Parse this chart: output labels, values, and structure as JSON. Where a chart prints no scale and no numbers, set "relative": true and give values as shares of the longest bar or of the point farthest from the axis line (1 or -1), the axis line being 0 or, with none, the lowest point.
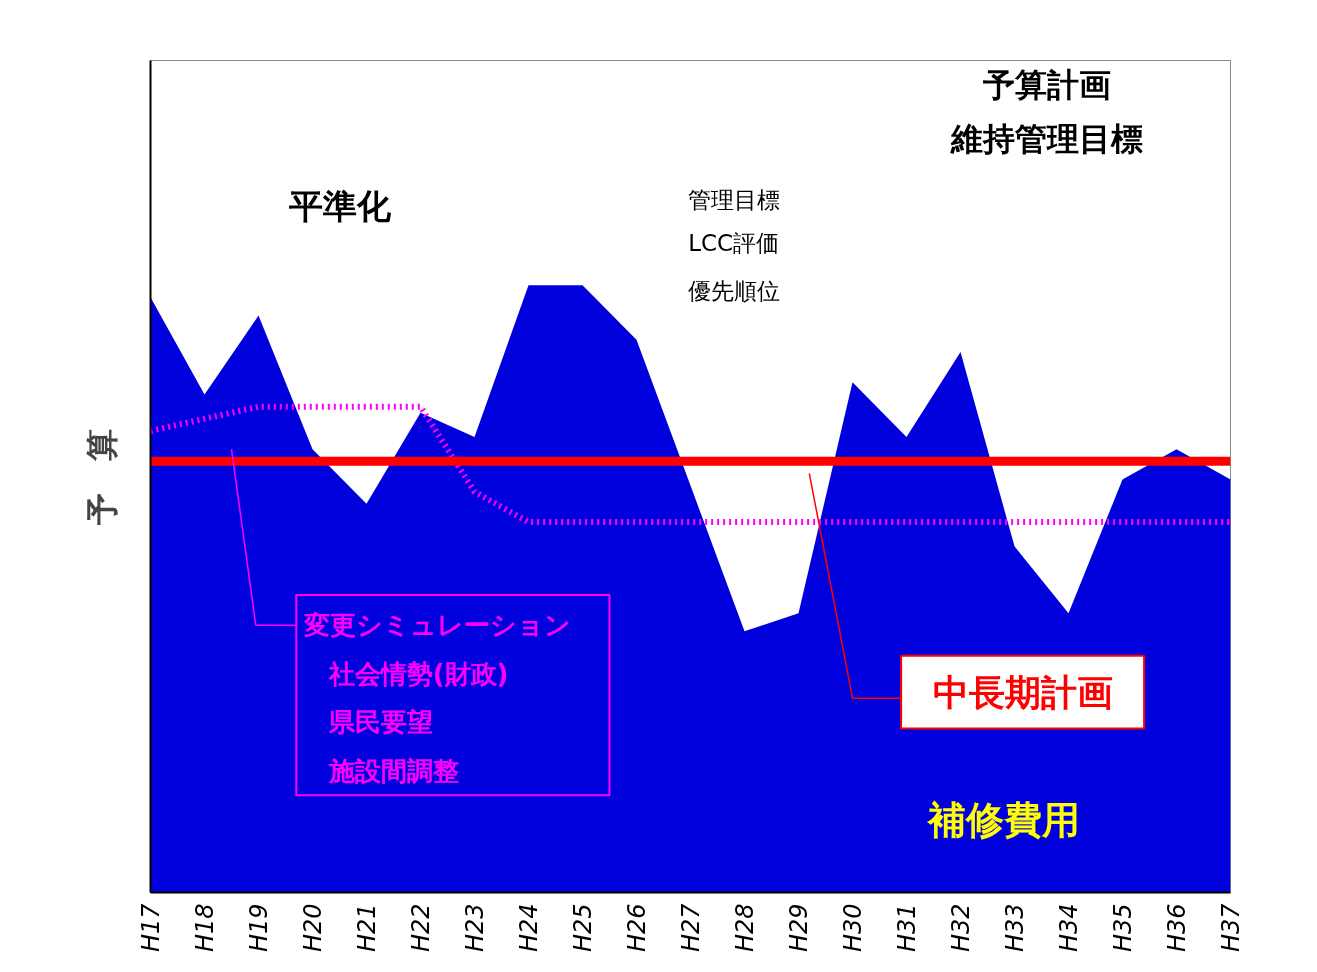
{
  "chart_data": {
    "type": "area",
    "relative": true,
    "ylabel": "予　算",
    "categories": [
      "H17",
      "H18",
      "H19",
      "H20",
      "H21",
      "H22",
      "H23",
      "H24",
      "H25",
      "H26",
      "H27",
      "H28",
      "H29",
      "H30",
      "H31",
      "H32",
      "H33",
      "H34",
      "H35",
      "H36",
      "H37"
    ],
    "series": [
      {
        "name": "補修費用",
        "color": "#0000dd",
        "values": [
          0.98,
          0.82,
          0.95,
          0.73,
          0.64,
          0.79,
          0.75,
          1,
          1,
          0.91,
          0.67,
          0.43,
          0.46,
          0.84,
          0.75,
          0.89,
          0.57,
          0.46,
          0.68,
          0.73,
          0.68
        ]
      },
      {
        "name": "変更シミュレーション",
        "type": "line",
        "color": "#ff00ff",
        "line_style": "dotted",
        "values": [
          0.76,
          0.78,
          0.8,
          0.8,
          0.8,
          0.8,
          0.66,
          0.61,
          0.61,
          0.61,
          0.61,
          0.61,
          0.61,
          0.61,
          0.61,
          0.61,
          0.61,
          0.61,
          0.61,
          0.61,
          0.61
        ]
      }
    ],
    "ref_lines": [
      {
        "axis": "y",
        "value": 0.71,
        "label": "中長期計画",
        "color": "#ff0000"
      }
    ],
    "annotations": [
      "平準化",
      "管理目標",
      "LCC評価",
      "優先順位",
      "予算計画",
      "維持管理目標",
      "社会情勢(財政)",
      "県民要望",
      "施設間調整"
    ],
    "grid": false
  }
}
